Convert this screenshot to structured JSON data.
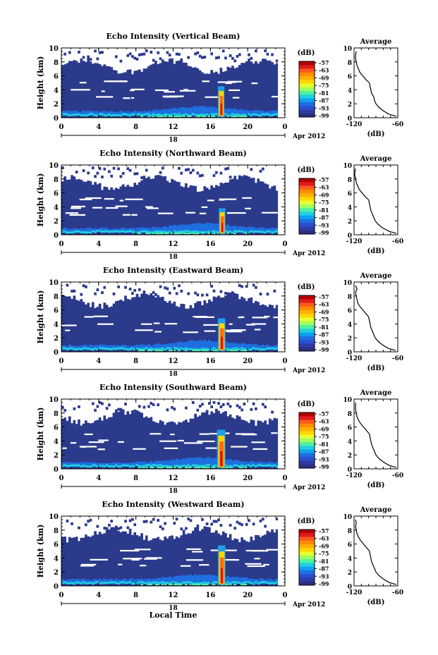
{
  "figure": {
    "xlabel": "Local Time",
    "date_label": "Apr 2012",
    "day_label": "18"
  },
  "colorbar": {
    "unit": "(dB)",
    "ticks": [
      "-57",
      "-63",
      "-69",
      "-75",
      "-81",
      "-87",
      "-93",
      "-99"
    ],
    "colors": [
      "#b30000",
      "#e31a1c",
      "#ff5a1f",
      "#ff8c00",
      "#ffb000",
      "#ffd700",
      "#e8ff30",
      "#a0ff60",
      "#50f0a0",
      "#20d0e0",
      "#10a0f0",
      "#1e6fe0",
      "#2a4fd0",
      "#2f3aa8",
      "#2b2f80"
    ]
  },
  "average_panel": {
    "title": "Average",
    "xlabel": "(dB)"
  },
  "chart_data": [
    {
      "type": "heatmap",
      "title": "Echo Intensity (Vertical Beam)",
      "ylabel": "Height (km)",
      "xticks": [
        "0",
        "4",
        "8",
        "12",
        "16",
        "20",
        "0"
      ],
      "yticks": [
        "0",
        "2",
        "4",
        "6",
        "8",
        "10"
      ],
      "xlim": [
        0,
        24
      ],
      "ylim": [
        0,
        10
      ],
      "plume": {
        "time_start": 16.8,
        "time_end": 17.5,
        "top_km": 4.5
      },
      "average_profile": {
        "xlim": [
          -120,
          -60
        ],
        "xticks": [
          "-120",
          "-60"
        ],
        "yticks": [
          "0",
          "2",
          "4",
          "6",
          "8",
          "10"
        ],
        "height_km": [
          0.2,
          0.5,
          1,
          1.5,
          2,
          2.5,
          3,
          3.5,
          4,
          4.5,
          5,
          5.5,
          6,
          6.5,
          7,
          7.5,
          8,
          8.5,
          9,
          9.5
        ],
        "value_db": [
          -62,
          -72,
          -80,
          -86,
          -90,
          -92,
          -93,
          -96,
          -97,
          -98,
          -99,
          -104,
          -108,
          -112,
          -114,
          -116,
          -117,
          -118,
          -118,
          -117
        ]
      }
    },
    {
      "type": "heatmap",
      "title": "Echo Intensity (Northward Beam)",
      "ylabel": "Height (km)",
      "xticks": [
        "0",
        "4",
        "8",
        "12",
        "16",
        "20",
        "0"
      ],
      "yticks": [
        "0",
        "2",
        "4",
        "6",
        "8",
        "10"
      ],
      "xlim": [
        0,
        24
      ],
      "ylim": [
        0,
        10
      ],
      "plume": {
        "time_start": 16.9,
        "time_end": 17.6,
        "top_km": 3.8
      },
      "average_profile": {
        "xlim": [
          -120,
          -60
        ],
        "xticks": [
          "-120",
          "-60"
        ],
        "yticks": [
          "0",
          "2",
          "4",
          "6",
          "8",
          "10"
        ],
        "height_km": [
          0.2,
          0.5,
          1,
          1.5,
          2,
          2.5,
          3,
          3.5,
          4,
          4.5,
          5,
          5.5,
          6,
          6.5,
          7,
          7.5,
          8,
          8.5,
          9,
          9.5
        ],
        "value_db": [
          -62,
          -72,
          -81,
          -87,
          -91,
          -93,
          -95,
          -97,
          -98,
          -99,
          -100,
          -105,
          -109,
          -113,
          -115,
          -117,
          -118,
          -119,
          -119,
          -118
        ]
      }
    },
    {
      "type": "heatmap",
      "title": "Echo Intensity (Eastward Beam)",
      "ylabel": "Height (km)",
      "xticks": [
        "0",
        "4",
        "8",
        "12",
        "16",
        "20",
        "0"
      ],
      "yticks": [
        "0",
        "2",
        "4",
        "6",
        "8",
        "10"
      ],
      "xlim": [
        0,
        24
      ],
      "ylim": [
        0,
        10
      ],
      "plume": {
        "time_start": 16.8,
        "time_end": 17.6,
        "top_km": 4.8
      },
      "average_profile": {
        "xlim": [
          -120,
          -60
        ],
        "xticks": [
          "-120",
          "-60"
        ],
        "yticks": [
          "0",
          "2",
          "4",
          "6",
          "8",
          "10"
        ],
        "height_km": [
          0.2,
          0.5,
          1,
          1.5,
          2,
          2.5,
          3,
          3.5,
          4,
          4.5,
          5,
          5.5,
          6,
          6.5,
          7,
          7.5,
          8,
          8.5,
          9,
          9.5
        ],
        "value_db": [
          -63,
          -73,
          -81,
          -87,
          -91,
          -93,
          -95,
          -97,
          -98,
          -99,
          -100,
          -104,
          -108,
          -112,
          -115,
          -116,
          -117,
          -118,
          -116,
          -118
        ]
      }
    },
    {
      "type": "heatmap",
      "title": "Echo Intensity (Southward Beam)",
      "ylabel": "Height (km)",
      "xticks": [
        "0",
        "4",
        "8",
        "12",
        "16",
        "20",
        "0"
      ],
      "yticks": [
        "0",
        "2",
        "4",
        "6",
        "8",
        "10"
      ],
      "xlim": [
        0,
        24
      ],
      "ylim": [
        0,
        10
      ],
      "plume": {
        "time_start": 16.7,
        "time_end": 17.6,
        "top_km": 5.6
      },
      "average_profile": {
        "xlim": [
          -120,
          -60
        ],
        "xticks": [
          "-120",
          "-60"
        ],
        "yticks": [
          "0",
          "2",
          "4",
          "6",
          "8",
          "10"
        ],
        "height_km": [
          0.2,
          0.5,
          1,
          1.5,
          2,
          2.5,
          3,
          3.5,
          4,
          4.5,
          5,
          5.5,
          6,
          6.5,
          7,
          7.5,
          8,
          8.5,
          9,
          9.5
        ],
        "value_db": [
          -62,
          -72,
          -80,
          -86,
          -90,
          -92,
          -94,
          -96,
          -97,
          -98,
          -99,
          -103,
          -107,
          -111,
          -114,
          -116,
          -117,
          -118,
          -118,
          -118
        ]
      }
    },
    {
      "type": "heatmap",
      "title": "Echo Intensity (Westward Beam)",
      "ylabel": "Height (km)",
      "xticks": [
        "0",
        "4",
        "8",
        "12",
        "16",
        "20",
        "0"
      ],
      "yticks": [
        "0",
        "2",
        "4",
        "6",
        "8",
        "10"
      ],
      "xlim": [
        0,
        24
      ],
      "ylim": [
        0,
        10
      ],
      "plume": {
        "time_start": 16.8,
        "time_end": 17.6,
        "top_km": 5.8
      },
      "average_profile": {
        "xlim": [
          -120,
          -60
        ],
        "xticks": [
          "-120",
          "-60"
        ],
        "yticks": [
          "0",
          "2",
          "4",
          "6",
          "8",
          "10"
        ],
        "height_km": [
          0.2,
          0.5,
          1,
          1.5,
          2,
          2.5,
          3,
          3.5,
          4,
          4.5,
          5,
          5.5,
          6,
          6.5,
          7,
          7.5,
          8,
          8.5,
          9,
          9.5
        ],
        "value_db": [
          -62,
          -72,
          -80,
          -86,
          -90,
          -92,
          -94,
          -96,
          -97,
          -98,
          -99,
          -103,
          -107,
          -111,
          -114,
          -116,
          -117,
          -118,
          -117,
          -118
        ]
      }
    }
  ]
}
